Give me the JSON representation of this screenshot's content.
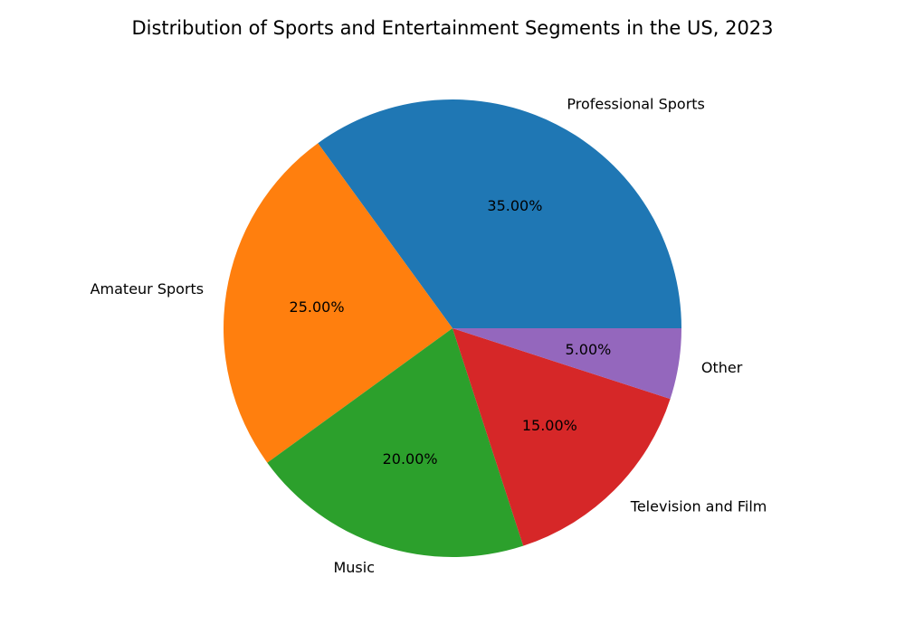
{
  "chart_data": {
    "type": "pie",
    "title": "Distribution of Sports and Entertainment Segments in the US, 2023",
    "categories": [
      "Professional Sports",
      "Amateur Sports",
      "Music",
      "Television and Film",
      "Other"
    ],
    "values": [
      35,
      25,
      20,
      15,
      5
    ],
    "percent_labels": [
      "35.00%",
      "25.00%",
      "20.00%",
      "15.00%",
      "5.00%"
    ],
    "colors": [
      "#1f77b4",
      "#ff7f0e",
      "#2ca02c",
      "#d62728",
      "#9467bd"
    ],
    "start_angle_deg": 0,
    "direction": "counterclockwise",
    "legend": "none"
  }
}
